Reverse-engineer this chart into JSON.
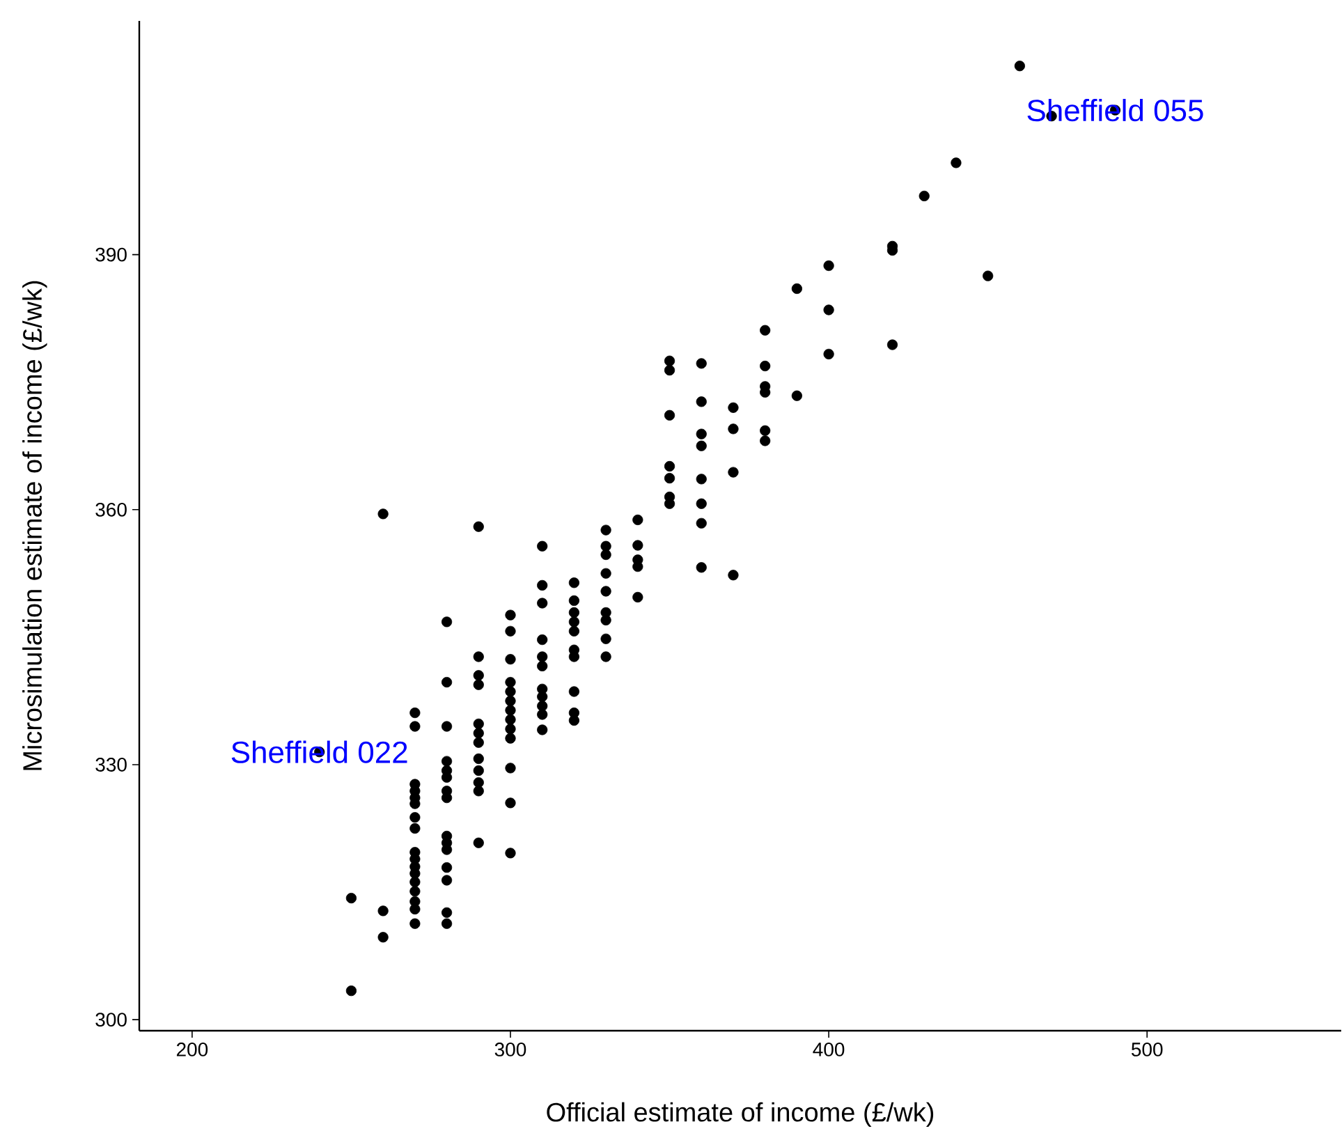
{
  "chart_data": {
    "type": "scatter",
    "xlabel": "Official estimate of income (£/wk)",
    "ylabel": "Microsimulation estimate of income (£/wk)",
    "xlim": [
      183.4,
      561
    ],
    "ylim": [
      298.7,
      417.5
    ],
    "xticks": [
      200,
      300,
      400,
      500
    ],
    "yticks": [
      300,
      330,
      360,
      390
    ],
    "grid": false,
    "series": [
      {
        "color": "#000000",
        "x": [
          240,
          250,
          250,
          260,
          260,
          260,
          270,
          270,
          270,
          270,
          270,
          270,
          270,
          270,
          270,
          270,
          270,
          270,
          270,
          270,
          270,
          270,
          270,
          280,
          280,
          280,
          280,
          280,
          280,
          280,
          280,
          280,
          280,
          280,
          280,
          280,
          280,
          280,
          290,
          290,
          290,
          290,
          290,
          290,
          290,
          290,
          290,
          290,
          290,
          290,
          300,
          300,
          300,
          300,
          300,
          300,
          300,
          300,
          300,
          300,
          300,
          300,
          300,
          310,
          310,
          310,
          310,
          310,
          310,
          310,
          310,
          310,
          310,
          310,
          320,
          320,
          320,
          320,
          320,
          320,
          320,
          320,
          320,
          320,
          330,
          330,
          330,
          330,
          330,
          330,
          330,
          330,
          330,
          340,
          340,
          340,
          340,
          340,
          350,
          350,
          350,
          350,
          350,
          350,
          350,
          360,
          360,
          360,
          360,
          360,
          360,
          360,
          360,
          370,
          370,
          370,
          370,
          380,
          380,
          380,
          380,
          380,
          380,
          390,
          390,
          400,
          400,
          400,
          420,
          420,
          420,
          430,
          440,
          450,
          460,
          470,
          490
        ],
        "values": [
          331.5,
          314.3,
          303.4,
          359.5,
          312.8,
          309.7,
          336.1,
          334.5,
          327.7,
          326.9,
          326.1,
          325.4,
          323.8,
          322.5,
          319.7,
          318.9,
          318.0,
          317.2,
          316.2,
          315.1,
          313.9,
          313.0,
          311.3,
          346.8,
          339.7,
          334.5,
          330.4,
          329.3,
          328.5,
          326.9,
          326.1,
          321.6,
          320.8,
          320.0,
          317.9,
          316.4,
          312.6,
          311.3,
          358.0,
          342.7,
          340.5,
          339.4,
          334.8,
          333.7,
          332.6,
          330.7,
          329.3,
          327.9,
          326.9,
          320.8,
          347.6,
          345.7,
          342.4,
          339.7,
          338.6,
          337.5,
          336.4,
          335.3,
          334.2,
          333.1,
          329.6,
          325.5,
          319.6,
          355.7,
          351.1,
          349.0,
          344.7,
          342.7,
          341.6,
          338.9,
          338.0,
          336.9,
          335.9,
          334.1,
          351.4,
          349.3,
          347.9,
          346.8,
          345.7,
          343.5,
          342.7,
          338.6,
          336.1,
          335.2,
          357.6,
          355.7,
          354.7,
          352.5,
          350.4,
          347.9,
          347.0,
          344.8,
          342.7,
          358.8,
          355.8,
          354.1,
          353.3,
          349.7,
          377.5,
          376.4,
          371.1,
          365.1,
          363.7,
          361.5,
          360.7,
          377.2,
          372.7,
          368.9,
          367.5,
          363.6,
          360.7,
          358.4,
          353.2,
          372.0,
          369.5,
          364.4,
          352.3,
          381.1,
          376.9,
          374.5,
          373.8,
          369.3,
          368.1,
          386.0,
          373.4,
          388.7,
          383.5,
          378.3,
          391.0,
          390.5,
          379.4,
          396.9,
          400.8,
          387.5,
          412.2,
          406.3,
          407.0
        ]
      }
    ],
    "annotations": [
      {
        "text": "Sheffield 022",
        "x": 240,
        "y": 331.5
      },
      {
        "text": "Sheffield 055",
        "x": 490,
        "y": 407.0
      }
    ]
  }
}
